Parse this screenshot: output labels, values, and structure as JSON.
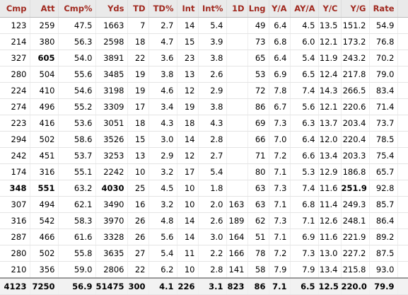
{
  "table": {
    "columns": [
      "Cmp",
      "Att",
      "Cmp%",
      "Yds",
      "TD",
      "TD%",
      "Int",
      "Int%",
      "1D",
      "Lng",
      "Y/A",
      "AY/A",
      "Y/C",
      "Y/G",
      "Rate"
    ],
    "rows": [
      [
        123,
        259,
        47.5,
        1663,
        7,
        2.7,
        14,
        5.4,
        null,
        49,
        6.4,
        4.5,
        13.5,
        151.2,
        54.9
      ],
      [
        214,
        380,
        56.3,
        2598,
        18,
        4.7,
        15,
        3.9,
        null,
        73,
        6.8,
        6.0,
        12.1,
        173.2,
        76.8
      ],
      [
        327,
        605,
        54.0,
        3891,
        22,
        3.6,
        23,
        3.8,
        null,
        65,
        6.4,
        5.4,
        11.9,
        243.2,
        70.2
      ],
      [
        280,
        504,
        55.6,
        3485,
        19,
        3.8,
        13,
        2.6,
        null,
        53,
        6.9,
        6.5,
        12.4,
        217.8,
        79.0
      ],
      [
        224,
        410,
        54.6,
        3198,
        19,
        4.6,
        12,
        2.9,
        null,
        72,
        7.8,
        7.4,
        14.3,
        266.5,
        83.4
      ],
      [
        274,
        496,
        55.2,
        3309,
        17,
        3.4,
        19,
        3.8,
        null,
        86,
        6.7,
        5.6,
        12.1,
        220.6,
        71.4
      ],
      [
        223,
        416,
        53.6,
        3051,
        18,
        4.3,
        18,
        4.3,
        null,
        69,
        7.3,
        6.3,
        13.7,
        203.4,
        73.7
      ],
      [
        294,
        502,
        58.6,
        3526,
        15,
        3.0,
        14,
        2.8,
        null,
        66,
        7.0,
        6.4,
        12.0,
        220.4,
        78.5
      ],
      [
        242,
        451,
        53.7,
        3253,
        13,
        2.9,
        12,
        2.7,
        null,
        71,
        7.2,
        6.6,
        13.4,
        203.3,
        75.4
      ],
      [
        174,
        316,
        55.1,
        2242,
        10,
        3.2,
        17,
        5.4,
        null,
        80,
        7.1,
        5.3,
        12.9,
        186.8,
        65.7
      ],
      [
        348,
        551,
        63.2,
        4030,
        25,
        4.5,
        10,
        1.8,
        null,
        63,
        7.3,
        7.4,
        11.6,
        251.9,
        92.8
      ],
      [
        307,
        494,
        62.1,
        3490,
        16,
        3.2,
        10,
        2.0,
        163,
        63,
        7.1,
        6.8,
        11.4,
        249.3,
        85.7
      ],
      [
        316,
        542,
        58.3,
        3970,
        26,
        4.8,
        14,
        2.6,
        189,
        62,
        7.3,
        7.1,
        12.6,
        248.1,
        86.4
      ],
      [
        287,
        466,
        61.6,
        3328,
        26,
        5.6,
        14,
        3.0,
        164,
        51,
        7.1,
        6.9,
        11.6,
        221.9,
        89.2
      ],
      [
        280,
        502,
        55.8,
        3635,
        27,
        5.4,
        11,
        2.2,
        166,
        78,
        7.2,
        7.3,
        13.0,
        227.2,
        87.5
      ],
      [
        210,
        356,
        59.0,
        2806,
        22,
        6.2,
        10,
        2.8,
        141,
        58,
        7.9,
        7.9,
        13.4,
        215.8,
        93.0
      ]
    ],
    "bold": [
      [
        2,
        1
      ],
      [
        10,
        0
      ],
      [
        10,
        1
      ],
      [
        10,
        3
      ],
      [
        10,
        13
      ]
    ],
    "totals": [
      4123,
      7250,
      56.9,
      51475,
      300,
      4.1,
      226,
      3.1,
      823,
      86,
      7.1,
      6.5,
      12.5,
      220.0,
      79.9
    ]
  }
}
